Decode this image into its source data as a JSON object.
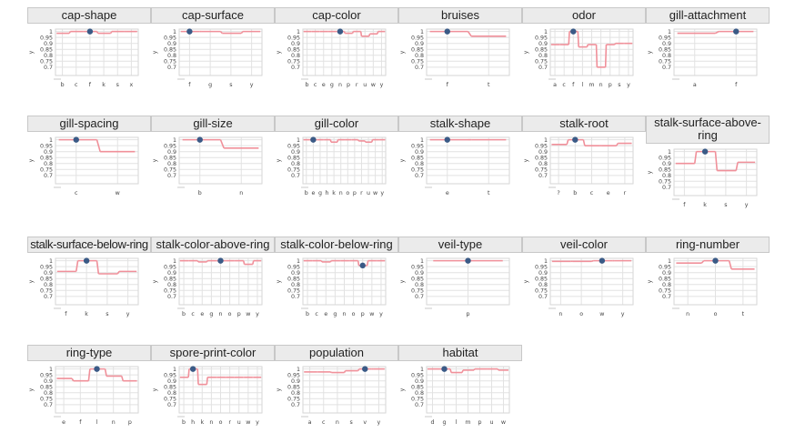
{
  "chart_data": [
    {
      "type": "line",
      "title": "cap-shape",
      "ylabel": "y",
      "categories": [
        "b",
        "c",
        "f",
        "k",
        "s",
        "x"
      ],
      "values": [
        0.985,
        1.0,
        1.0,
        0.985,
        1.0,
        1.0
      ],
      "highlight": "f",
      "ylim": [
        0.63,
        1.02
      ],
      "yticks": [
        "1",
        "0.95",
        "0.9",
        "0.85",
        "0.8",
        "0.75",
        "0.7"
      ]
    },
    {
      "type": "line",
      "title": "cap-surface",
      "ylabel": "y",
      "categories": [
        "f",
        "g",
        "s",
        "y"
      ],
      "values": [
        1.0,
        1.0,
        0.985,
        1.0
      ],
      "highlight": "f",
      "ylim": [
        0.63,
        1.02
      ],
      "yticks": [
        "1",
        "0.95",
        "0.9",
        "0.85",
        "0.8",
        "0.75",
        "0.7"
      ]
    },
    {
      "type": "line",
      "title": "cap-color",
      "ylabel": "y",
      "categories": [
        "b",
        "c",
        "e",
        "g",
        "n",
        "p",
        "r",
        "u",
        "w",
        "y"
      ],
      "values": [
        1.0,
        1.0,
        1.0,
        1.0,
        1.0,
        0.985,
        1.0,
        0.96,
        0.98,
        1.0
      ],
      "highlight": "n",
      "ylim": [
        0.63,
        1.02
      ],
      "yticks": [
        "1",
        "0.95",
        "0.9",
        "0.85",
        "0.8",
        "0.75",
        "0.7"
      ]
    },
    {
      "type": "line",
      "title": "bruises",
      "ylabel": "y",
      "categories": [
        "f",
        "t"
      ],
      "values": [
        1.0,
        0.96
      ],
      "highlight": "f",
      "ylim": [
        0.63,
        1.02
      ],
      "yticks": [
        "1",
        "0.95",
        "0.9",
        "0.85",
        "0.8",
        "0.75",
        "0.7"
      ]
    },
    {
      "type": "line",
      "title": "odor",
      "ylabel": "y",
      "categories": [
        "a",
        "c",
        "f",
        "l",
        "m",
        "n",
        "p",
        "s",
        "y"
      ],
      "values": [
        0.89,
        0.89,
        1.0,
        0.87,
        0.89,
        0.7,
        0.89,
        0.9,
        0.9
      ],
      "highlight": "f",
      "ylim": [
        0.63,
        1.02
      ],
      "yticks": [
        "1",
        "0.95",
        "0.9",
        "0.85",
        "0.8",
        "0.75",
        "0.7"
      ]
    },
    {
      "type": "line",
      "title": "gill-attachment",
      "ylabel": "y",
      "categories": [
        "a",
        "f"
      ],
      "values": [
        0.985,
        1.0
      ],
      "highlight": "f",
      "ylim": [
        0.63,
        1.02
      ],
      "yticks": [
        "1",
        "0.95",
        "0.9",
        "0.85",
        "0.8",
        "0.75",
        "0.7"
      ]
    },
    {
      "type": "line",
      "title": "gill-spacing",
      "ylabel": "y",
      "categories": [
        "c",
        "w"
      ],
      "values": [
        1.0,
        0.9
      ],
      "highlight": "c",
      "ylim": [
        0.63,
        1.02
      ],
      "yticks": [
        "1",
        "0.95",
        "0.9",
        "0.85",
        "0.8",
        "0.75",
        "0.7"
      ]
    },
    {
      "type": "line",
      "title": "gill-size",
      "ylabel": "y",
      "categories": [
        "b",
        "n"
      ],
      "values": [
        1.0,
        0.93
      ],
      "highlight": "b",
      "ylim": [
        0.63,
        1.02
      ],
      "yticks": [
        "1",
        "0.95",
        "0.9",
        "0.85",
        "0.8",
        "0.75",
        "0.7"
      ]
    },
    {
      "type": "line",
      "title": "gill-color",
      "ylabel": "y",
      "categories": [
        "b",
        "e",
        "g",
        "h",
        "k",
        "n",
        "o",
        "p",
        "r",
        "u",
        "w",
        "y"
      ],
      "values": [
        1.0,
        1.0,
        1.0,
        1.0,
        0.98,
        1.0,
        1.0,
        1.0,
        0.99,
        0.98,
        1.0,
        1.0
      ],
      "highlight": "e",
      "ylim": [
        0.63,
        1.02
      ],
      "yticks": [
        "1",
        "0.95",
        "0.9",
        "0.85",
        "0.8",
        "0.75",
        "0.7"
      ]
    },
    {
      "type": "line",
      "title": "stalk-shape",
      "ylabel": "y",
      "categories": [
        "e",
        "t"
      ],
      "values": [
        1.0,
        1.0
      ],
      "highlight": "e",
      "ylim": [
        0.63,
        1.02
      ],
      "yticks": [
        "1",
        "0.95",
        "0.9",
        "0.85",
        "0.8",
        "0.75",
        "0.7"
      ]
    },
    {
      "type": "line",
      "title": "stalk-root",
      "ylabel": "y",
      "categories": [
        "?",
        "b",
        "c",
        "e",
        "r"
      ],
      "values": [
        0.96,
        1.0,
        0.95,
        0.95,
        0.97
      ],
      "highlight": "b",
      "ylim": [
        0.63,
        1.02
      ],
      "yticks": [
        "1",
        "0.95",
        "0.9",
        "0.85",
        "0.8",
        "0.75",
        "0.7"
      ]
    },
    {
      "type": "line",
      "title": "stalk-surface-above-ring",
      "ylabel": "y",
      "categories": [
        "f",
        "k",
        "s",
        "y"
      ],
      "values": [
        0.9,
        1.0,
        0.84,
        0.91
      ],
      "highlight": "k",
      "ylim": [
        0.63,
        1.02
      ],
      "yticks": [
        "1",
        "0.95",
        "0.9",
        "0.85",
        "0.8",
        "0.75",
        "0.7"
      ]
    },
    {
      "type": "line",
      "title": "stalk-surface-below-ring",
      "ylabel": "y",
      "categories": [
        "f",
        "k",
        "s",
        "y"
      ],
      "values": [
        0.91,
        1.0,
        0.89,
        0.91
      ],
      "highlight": "k",
      "ylim": [
        0.63,
        1.02
      ],
      "yticks": [
        "1",
        "0.95",
        "0.9",
        "0.85",
        "0.8",
        "0.75",
        "0.7"
      ]
    },
    {
      "type": "line",
      "title": "stalk-color-above-ring",
      "ylabel": "y",
      "categories": [
        "b",
        "c",
        "e",
        "g",
        "n",
        "o",
        "p",
        "w",
        "y"
      ],
      "values": [
        1.0,
        1.0,
        0.99,
        1.0,
        1.0,
        1.0,
        1.0,
        0.97,
        1.0
      ],
      "highlight": "n",
      "ylim": [
        0.63,
        1.02
      ],
      "yticks": [
        "1",
        "0.95",
        "0.9",
        "0.85",
        "0.8",
        "0.75",
        "0.7"
      ]
    },
    {
      "type": "line",
      "title": "stalk-color-below-ring",
      "ylabel": "y",
      "categories": [
        "b",
        "c",
        "e",
        "g",
        "n",
        "o",
        "p",
        "w",
        "y"
      ],
      "values": [
        1.0,
        1.0,
        0.99,
        1.0,
        1.0,
        1.0,
        0.96,
        1.0,
        1.0
      ],
      "highlight": "p",
      "ylim": [
        0.63,
        1.02
      ],
      "yticks": [
        "1",
        "0.95",
        "0.9",
        "0.85",
        "0.8",
        "0.75",
        "0.7"
      ]
    },
    {
      "type": "line",
      "title": "veil-type",
      "ylabel": "y",
      "categories": [
        "p"
      ],
      "values": [
        1.0
      ],
      "highlight": "p",
      "ylim": [
        0.63,
        1.02
      ],
      "yticks": [
        "1",
        "0.95",
        "0.9",
        "0.85",
        "0.8",
        "0.75",
        "0.7"
      ]
    },
    {
      "type": "line",
      "title": "veil-color",
      "ylabel": "y",
      "categories": [
        "n",
        "o",
        "w",
        "y"
      ],
      "values": [
        0.995,
        0.995,
        1.0,
        1.0
      ],
      "highlight": "w",
      "ylim": [
        0.63,
        1.02
      ],
      "yticks": [
        "1",
        "0.95",
        "0.9",
        "0.85",
        "0.8",
        "0.75",
        "0.7"
      ]
    },
    {
      "type": "line",
      "title": "ring-number",
      "ylabel": "y",
      "categories": [
        "n",
        "o",
        "t"
      ],
      "values": [
        0.98,
        1.0,
        0.93
      ],
      "highlight": "o",
      "ylim": [
        0.63,
        1.02
      ],
      "yticks": [
        "1",
        "0.95",
        "0.9",
        "0.85",
        "0.8",
        "0.75",
        "0.7"
      ]
    },
    {
      "type": "line",
      "title": "ring-type",
      "ylabel": "y",
      "categories": [
        "e",
        "f",
        "l",
        "n",
        "p"
      ],
      "values": [
        0.92,
        0.9,
        1.0,
        0.94,
        0.9
      ],
      "highlight": "l",
      "ylim": [
        0.63,
        1.02
      ],
      "yticks": [
        "1",
        "0.95",
        "0.9",
        "0.85",
        "0.8",
        "0.75",
        "0.7"
      ]
    },
    {
      "type": "line",
      "title": "spore-print-color",
      "ylabel": "y",
      "categories": [
        "b",
        "h",
        "k",
        "n",
        "o",
        "r",
        "u",
        "w",
        "y"
      ],
      "values": [
        0.93,
        1.0,
        0.87,
        0.93,
        0.93,
        0.93,
        0.93,
        0.93,
        0.93
      ],
      "highlight": "h",
      "ylim": [
        0.63,
        1.02
      ],
      "yticks": [
        "1",
        "0.95",
        "0.9",
        "0.85",
        "0.8",
        "0.75",
        "0.7"
      ]
    },
    {
      "type": "line",
      "title": "population",
      "ylabel": "y",
      "categories": [
        "a",
        "c",
        "n",
        "s",
        "v",
        "y"
      ],
      "values": [
        0.975,
        0.975,
        0.97,
        0.985,
        1.0,
        1.0
      ],
      "highlight": "v",
      "ylim": [
        0.63,
        1.02
      ],
      "yticks": [
        "1",
        "0.95",
        "0.9",
        "0.85",
        "0.8",
        "0.75",
        "0.7"
      ]
    },
    {
      "type": "line",
      "title": "habitat",
      "ylabel": "y",
      "categories": [
        "d",
        "g",
        "l",
        "m",
        "p",
        "u",
        "w"
      ],
      "values": [
        1.0,
        1.0,
        0.97,
        0.99,
        1.0,
        1.0,
        0.99
      ],
      "highlight": "g",
      "ylim": [
        0.63,
        1.02
      ],
      "yticks": [
        "1",
        "0.95",
        "0.9",
        "0.85",
        "0.8",
        "0.75",
        "0.7"
      ]
    }
  ],
  "colors": {
    "line": "#f0909a",
    "marker": "#3a5a86",
    "grid": "#e2e2e2",
    "title_bg": "#ebebeb",
    "text": "#444444"
  }
}
